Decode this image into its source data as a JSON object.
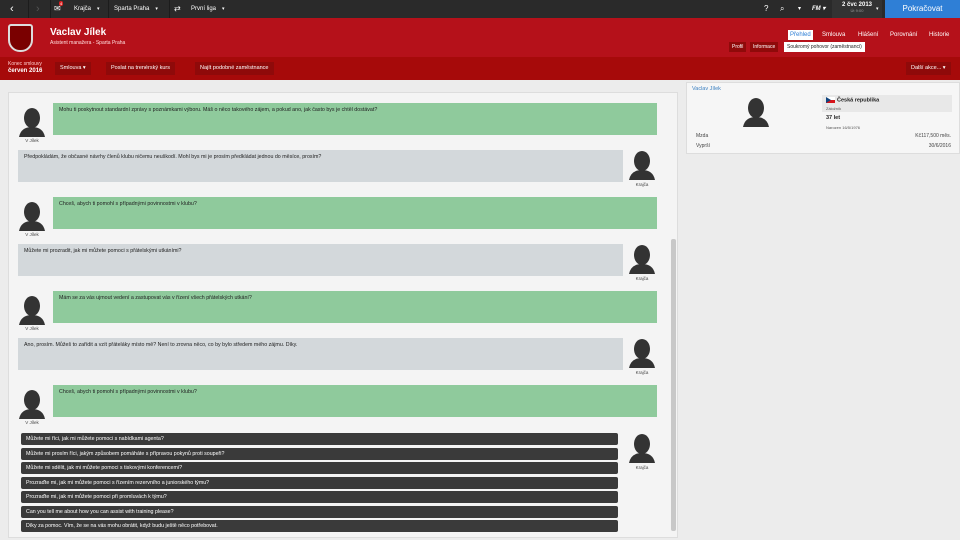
{
  "topbar": {
    "nav_badge": "4",
    "crumbs": [
      "Krajča",
      "Sparta Praha",
      "První liga"
    ],
    "fm_label": "FM",
    "date": "2 čvc 2013",
    "time": "Út 9:00",
    "continue": "Pokračovat"
  },
  "header": {
    "name": "Vaclav Jílek",
    "role": "Asistent manažera - Sparta Praha",
    "tabs": [
      "Přehled",
      "Smlouva",
      "Hlášení",
      "Porovnání",
      "Historie"
    ],
    "subtabs": [
      "Profil",
      "Informace",
      "Soukromý pohovor (zaměstnanci)"
    ],
    "active_tab": "Přehled",
    "active_subtab": "Soukromý pohovor (zaměstnanci)"
  },
  "subbar": {
    "contract_label": "Konec smlouvy",
    "contract_value": "červen 2016",
    "buttons": [
      "Smlouva",
      "Poslat na trenérský kurs",
      "Najít podobné zaměstnance"
    ],
    "more": "Další akce..."
  },
  "profile": {
    "name": "Vaclav Jílek",
    "nation": "Česká republika",
    "position": "Záložník",
    "age": "37 let",
    "born": "Narozen 16/5/1976",
    "wage_label": "Mzda",
    "wage": "Kč117,500 měs.",
    "expires_label": "Vyprší",
    "expires": "30/6/2016"
  },
  "conversation": {
    "staff_label": "V Jílek",
    "manager_label": "Krajča",
    "messages": [
      {
        "from": "staff",
        "text": "Mohu ti poskytnout standardní zprávy s poznámkami výboru. Máš o něco takového zájem, a pokud ano, jak často bys je chtěl dostávat?"
      },
      {
        "from": "manager",
        "text": "Předpokládám, že občasné návrhy členů klubu ničemu neuškodí. Mohl bys mi je prosím předkládat jednou do měsíce, prosím?"
      },
      {
        "from": "staff",
        "text": "Chceš, abych ti pomohl s případnými povinnostmi v klubu?"
      },
      {
        "from": "manager",
        "text": "Můžete mi prozradit, jak mi můžete pomoci s přátelskými utkáními?"
      },
      {
        "from": "staff",
        "text": "Mám se za vás ujmout vedení a zastupovat vás v řízení všech přátelských utkání?"
      },
      {
        "from": "manager",
        "text": "Ano, prosím. Můžeš to zařídit a vzít přáteláky místo mě? Není to zrovna něco, co by bylo středem mého zájmu. Díky."
      },
      {
        "from": "staff",
        "text": "Chceš, abych ti pomohl s případnými povinnostmi v klubu?"
      }
    ],
    "options": [
      "Můžete mi říci, jak mi můžete pomoci s nabídkami agenta?",
      "Můžete mi prosím říci, jakým způsobem pomáháte s přípravou pokynů proti soupeři?",
      "Můžete mi sdělit, jak mi můžete pomoci s tiskovými konferencemi?",
      "Prozraďte mi, jak mi můžete pomoci s řízením rezervního a juniorského týmu?",
      "Prozraďte mi, jak mi můžete pomoci při promluvách k týmu?",
      "Can you tell me about how you can assist with training please?",
      "Díky za pomoc. Vím, že se na vás mohu obrátit, když budu ještě něco potřebovat."
    ]
  },
  "colors": {
    "header": "#b5111a",
    "continue": "#2f7fd6",
    "staff_bubble": "#8fca9c",
    "manager_bubble": "#d3d8db"
  }
}
